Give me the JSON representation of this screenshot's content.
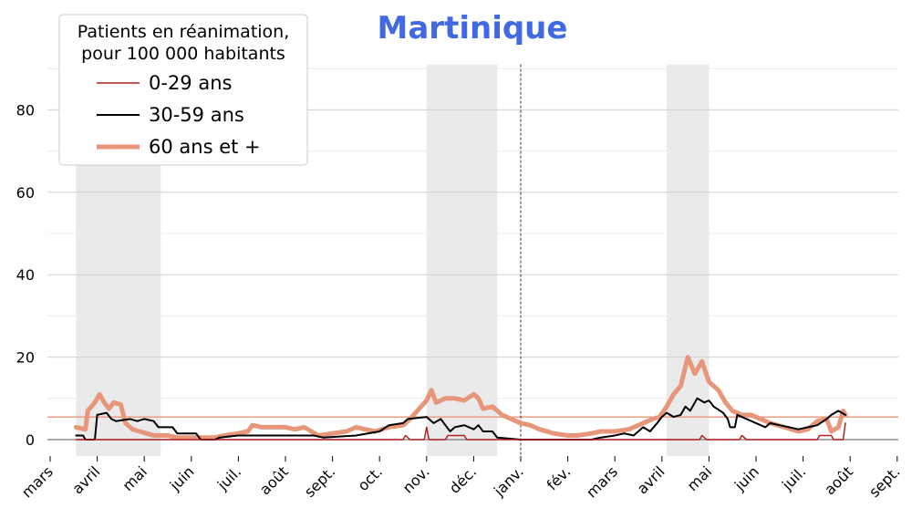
{
  "chart_data": {
    "type": "line",
    "title": "Martinique",
    "title_color": "#4169e1",
    "legend": {
      "title": [
        "Patients en réanimation,",
        "pour 100 000 habitants"
      ],
      "placement": "top-left"
    },
    "x_tick_labels": [
      "mars",
      "avril",
      "mai",
      "juin",
      "juil.",
      "août",
      "sept.",
      "oct.",
      "nov.",
      "déc.",
      "janv.",
      "fév.",
      "mars",
      "avril",
      "mai",
      "juin",
      "juil.",
      "août",
      "sept."
    ],
    "y_ticks": [
      0,
      20,
      40,
      60,
      80
    ],
    "ylim": [
      -4,
      91
    ],
    "grid": true,
    "x_unit": "months since 2020-03-01",
    "shaded_periods": [
      [
        0.55,
        2.35
      ],
      [
        8.0,
        9.5
      ],
      [
        13.1,
        14.0
      ]
    ],
    "year_divider": 10,
    "reference_line": {
      "value": 5.5,
      "color": "#e8967a"
    },
    "series": [
      {
        "name": "0-29 ans",
        "color": "#b22222",
        "width": 1.5,
        "points": [
          [
            0.55,
            0
          ],
          [
            7.5,
            0
          ],
          [
            7.55,
            1
          ],
          [
            7.65,
            0
          ],
          [
            7.95,
            0
          ],
          [
            8.0,
            3
          ],
          [
            8.05,
            0
          ],
          [
            8.4,
            0
          ],
          [
            8.45,
            1
          ],
          [
            8.8,
            1
          ],
          [
            8.85,
            0
          ],
          [
            13.8,
            0
          ],
          [
            13.85,
            1
          ],
          [
            13.95,
            0
          ],
          [
            14.65,
            0
          ],
          [
            14.7,
            1
          ],
          [
            14.8,
            0
          ],
          [
            16.3,
            0
          ],
          [
            16.35,
            1
          ],
          [
            16.6,
            1
          ],
          [
            16.65,
            0
          ],
          [
            16.85,
            0
          ],
          [
            16.9,
            4
          ]
        ]
      },
      {
        "name": "30-59 ans",
        "color": "#000000",
        "width": 2,
        "points": [
          [
            0.55,
            1
          ],
          [
            0.7,
            1
          ],
          [
            0.75,
            0
          ],
          [
            0.95,
            0
          ],
          [
            1.0,
            6
          ],
          [
            1.2,
            6.5
          ],
          [
            1.3,
            5
          ],
          [
            1.4,
            4.5
          ],
          [
            1.7,
            5
          ],
          [
            1.85,
            4.5
          ],
          [
            2.0,
            5
          ],
          [
            2.2,
            4.5
          ],
          [
            2.3,
            3
          ],
          [
            2.6,
            3
          ],
          [
            2.7,
            1.5
          ],
          [
            3.1,
            1.5
          ],
          [
            3.2,
            0
          ],
          [
            3.5,
            0
          ],
          [
            3.6,
            0.5
          ],
          [
            4.0,
            1
          ],
          [
            5.0,
            1
          ],
          [
            5.6,
            1
          ],
          [
            5.8,
            0.5
          ],
          [
            6.5,
            1
          ],
          [
            7.0,
            2
          ],
          [
            7.2,
            3.5
          ],
          [
            7.5,
            4
          ],
          [
            7.6,
            5
          ],
          [
            8.0,
            5.5
          ],
          [
            8.15,
            4
          ],
          [
            8.3,
            5
          ],
          [
            8.4,
            3.5
          ],
          [
            8.5,
            2
          ],
          [
            8.6,
            3
          ],
          [
            8.8,
            3.5
          ],
          [
            9.0,
            2.5
          ],
          [
            9.1,
            3.5
          ],
          [
            9.2,
            2
          ],
          [
            9.4,
            2
          ],
          [
            9.5,
            0.5
          ],
          [
            10.0,
            0
          ],
          [
            11.5,
            0
          ],
          [
            11.7,
            0.5
          ],
          [
            12.0,
            1
          ],
          [
            12.2,
            1.5
          ],
          [
            12.4,
            1
          ],
          [
            12.6,
            3
          ],
          [
            12.75,
            2
          ],
          [
            12.9,
            4
          ],
          [
            13.0,
            5.5
          ],
          [
            13.1,
            6.5
          ],
          [
            13.25,
            5.5
          ],
          [
            13.4,
            6
          ],
          [
            13.5,
            8
          ],
          [
            13.6,
            7
          ],
          [
            13.75,
            10
          ],
          [
            13.9,
            9
          ],
          [
            14.0,
            9.5
          ],
          [
            14.1,
            8
          ],
          [
            14.3,
            6.5
          ],
          [
            14.4,
            5
          ],
          [
            14.45,
            3
          ],
          [
            14.55,
            3
          ],
          [
            14.6,
            6
          ],
          [
            14.8,
            5
          ],
          [
            15.0,
            4
          ],
          [
            15.2,
            3
          ],
          [
            15.3,
            4
          ],
          [
            15.5,
            3.5
          ],
          [
            15.7,
            3
          ],
          [
            15.9,
            2.5
          ],
          [
            16.1,
            3
          ],
          [
            16.3,
            3.5
          ],
          [
            16.5,
            5
          ],
          [
            16.6,
            6
          ],
          [
            16.75,
            7
          ],
          [
            16.9,
            6
          ]
        ]
      },
      {
        "name": "60 ans et +",
        "color": "#e8967a",
        "width": 5,
        "points": [
          [
            0.55,
            3
          ],
          [
            0.75,
            2.5
          ],
          [
            0.8,
            7
          ],
          [
            0.95,
            9
          ],
          [
            1.05,
            11
          ],
          [
            1.15,
            9
          ],
          [
            1.25,
            7.5
          ],
          [
            1.35,
            9
          ],
          [
            1.5,
            8.5
          ],
          [
            1.6,
            4
          ],
          [
            1.75,
            2.5
          ],
          [
            1.9,
            2
          ],
          [
            2.05,
            1.5
          ],
          [
            2.2,
            1
          ],
          [
            2.5,
            1
          ],
          [
            2.7,
            0.5
          ],
          [
            3.0,
            0.5
          ],
          [
            3.5,
            0.5
          ],
          [
            3.7,
            1
          ],
          [
            4.0,
            1.5
          ],
          [
            4.2,
            2
          ],
          [
            4.3,
            3.5
          ],
          [
            4.5,
            3
          ],
          [
            5.0,
            3
          ],
          [
            5.2,
            2.5
          ],
          [
            5.4,
            3
          ],
          [
            5.55,
            2
          ],
          [
            5.7,
            1
          ],
          [
            6.0,
            1.5
          ],
          [
            6.3,
            2
          ],
          [
            6.5,
            3
          ],
          [
            6.7,
            2.5
          ],
          [
            6.9,
            2
          ],
          [
            7.2,
            3
          ],
          [
            7.5,
            3.5
          ],
          [
            7.65,
            5
          ],
          [
            7.8,
            7
          ],
          [
            8.0,
            9.5
          ],
          [
            8.1,
            12
          ],
          [
            8.2,
            9
          ],
          [
            8.4,
            10
          ],
          [
            8.6,
            10
          ],
          [
            8.8,
            9.5
          ],
          [
            9.0,
            11
          ],
          [
            9.1,
            10
          ],
          [
            9.2,
            7.5
          ],
          [
            9.4,
            8
          ],
          [
            9.6,
            6
          ],
          [
            9.8,
            5
          ],
          [
            10.0,
            4
          ],
          [
            10.2,
            3.5
          ],
          [
            10.4,
            2.5
          ],
          [
            10.7,
            1.5
          ],
          [
            11.0,
            1
          ],
          [
            11.2,
            1
          ],
          [
            11.5,
            1.5
          ],
          [
            11.7,
            2
          ],
          [
            12.0,
            2
          ],
          [
            12.3,
            2.5
          ],
          [
            12.6,
            4
          ],
          [
            12.8,
            5
          ],
          [
            12.95,
            5.5
          ],
          [
            13.1,
            8
          ],
          [
            13.25,
            11
          ],
          [
            13.4,
            13
          ],
          [
            13.55,
            20
          ],
          [
            13.7,
            16
          ],
          [
            13.85,
            19
          ],
          [
            14.0,
            14
          ],
          [
            14.2,
            12
          ],
          [
            14.35,
            9
          ],
          [
            14.5,
            7
          ],
          [
            14.7,
            6
          ],
          [
            14.9,
            6
          ],
          [
            15.1,
            5
          ],
          [
            15.3,
            4
          ],
          [
            15.6,
            3
          ],
          [
            15.9,
            2
          ],
          [
            16.1,
            2.5
          ],
          [
            16.3,
            4.5
          ],
          [
            16.5,
            5
          ],
          [
            16.6,
            2
          ],
          [
            16.75,
            3
          ],
          [
            16.85,
            7
          ],
          [
            16.9,
            6
          ]
        ]
      }
    ]
  }
}
